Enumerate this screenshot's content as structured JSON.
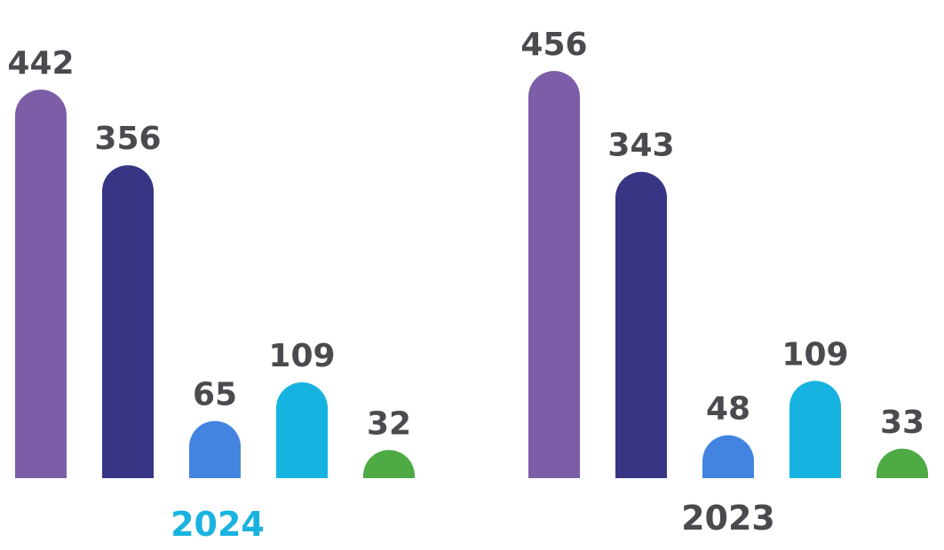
{
  "chart_data": [
    {
      "type": "bar",
      "group_label": "2024",
      "group_label_color": "#1ab3df",
      "values": [
        442,
        356,
        65,
        109,
        32
      ],
      "colors": [
        "#7b5ea7",
        "#373584",
        "#4384e0",
        "#17b3e0",
        "#4eaa45"
      ],
      "ylim": [
        0,
        442
      ]
    },
    {
      "type": "bar",
      "group_label": "2023",
      "group_label_color": "#4a4a4f",
      "values": [
        456,
        343,
        48,
        109,
        33
      ],
      "colors": [
        "#7b5ea7",
        "#373584",
        "#4384e0",
        "#17b3e0",
        "#4eaa45"
      ],
      "ylim": [
        0,
        456
      ]
    }
  ]
}
